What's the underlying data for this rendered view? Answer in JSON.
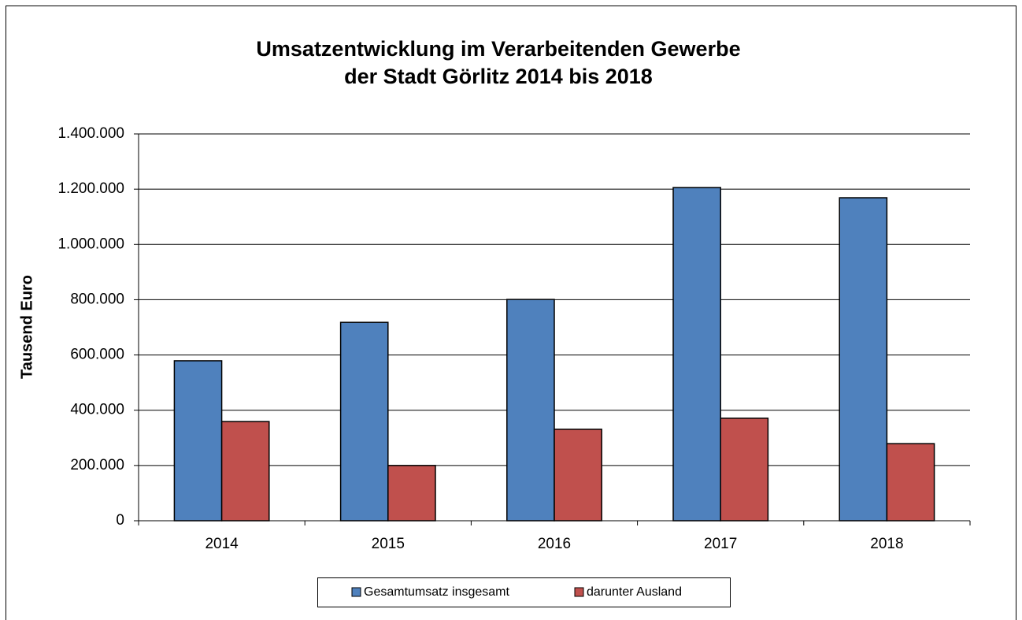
{
  "chart_data": {
    "type": "bar",
    "title": [
      "Umsatzentwicklung im Verarbeitenden Gewerbe",
      "der Stadt Görlitz 2014 bis 2018"
    ],
    "y_label": "Tausend Euro",
    "categories": [
      "2014",
      "2015",
      "2016",
      "2017",
      "2018"
    ],
    "series": [
      {
        "name": "Gesamtumsatz insgesamt",
        "color": "#4f81bd",
        "values": [
          579000,
          718000,
          801000,
          1206000,
          1169000
        ]
      },
      {
        "name": "darunter Ausland",
        "color": "#c0504d",
        "values": [
          359000,
          200000,
          331000,
          371000,
          279000
        ]
      }
    ],
    "ylim": [
      0,
      1400000
    ],
    "yticks": [
      0,
      {
        "value": 200000,
        "label": "200.000"
      },
      {
        "value": 400000,
        "label": "400.000"
      },
      {
        "value": 600000,
        "label": "600.000"
      },
      {
        "value": 800000,
        "label": "800.000"
      },
      {
        "value": 1000000,
        "label": "1.000.000"
      },
      {
        "value": 1200000,
        "label": "1.200.000"
      },
      {
        "value": 1400000,
        "label": "1.400.000"
      }
    ],
    "grid": true,
    "legend": "bottom"
  }
}
